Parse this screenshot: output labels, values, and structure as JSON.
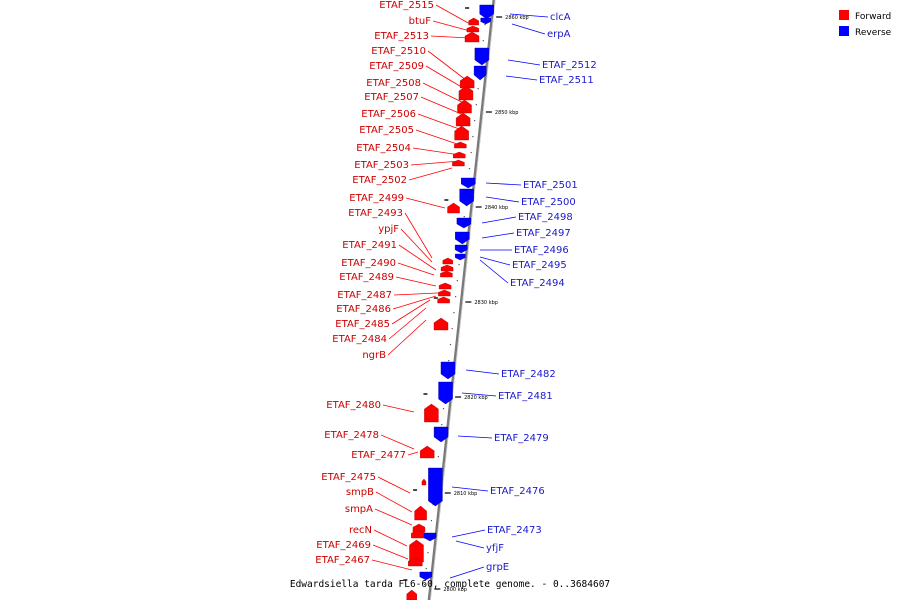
{
  "caption": "Edwardsiella tarda FL6-60, complete genome. - 0..3684607",
  "legend": [
    {
      "label": "Forward",
      "color": "#ff0000"
    },
    {
      "label": "Reverse",
      "color": "#0000ff"
    }
  ],
  "colors": {
    "forward": "#ff0000",
    "reverse": "#0000ff",
    "backbone": "#888888"
  },
  "ticks": [
    "2860 kbp",
    "2850 kbp",
    "2840 kbp",
    "2830 kbp",
    "2820 kbp",
    "2810 kbp",
    "2800 kbp"
  ],
  "forward_genes": [
    "ETAF_2515",
    "btuF",
    "ETAF_2513",
    "ETAF_2510",
    "ETAF_2509",
    "ETAF_2508",
    "ETAF_2507",
    "ETAF_2506",
    "ETAF_2505",
    "ETAF_2504",
    "ETAF_2503",
    "ETAF_2502",
    "ETAF_2499",
    "ETAF_2493",
    "ypjF",
    "ETAF_2491",
    "ETAF_2490",
    "ETAF_2489",
    "ETAF_2487",
    "ETAF_2486",
    "ETAF_2485",
    "ETAF_2484",
    "ngrB",
    "ETAF_2480",
    "ETAF_2478",
    "ETAF_2477",
    "ETAF_2475",
    "smpB",
    "smpA",
    "recN",
    "ETAF_2469",
    "ETAF_2467"
  ],
  "reverse_genes": [
    "clcA",
    "erpA",
    "ETAF_2512",
    "ETAF_2511",
    "ETAF_2501",
    "ETAF_2500",
    "ETAF_2498",
    "ETAF_2497",
    "ETAF_2496",
    "ETAF_2495",
    "ETAF_2494",
    "ETAF_2482",
    "ETAF_2481",
    "ETAF_2479",
    "ETAF_2476",
    "ETAF_2473",
    "yfjF",
    "grpE"
  ]
}
